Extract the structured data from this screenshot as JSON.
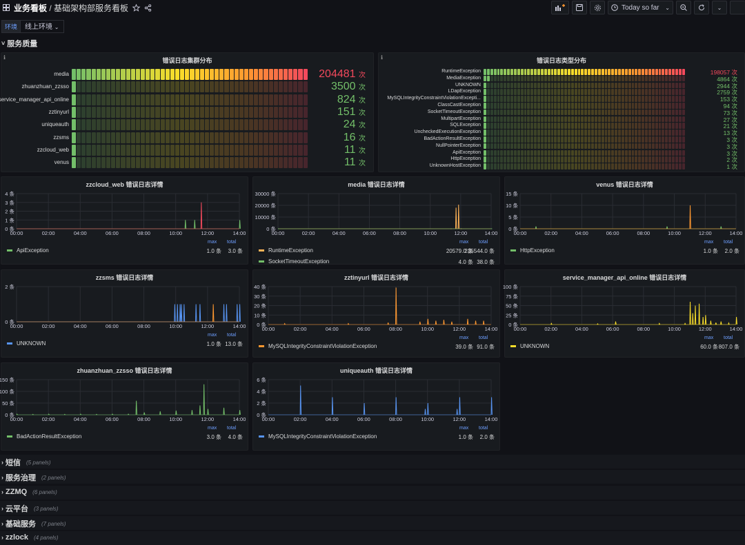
{
  "header": {
    "section": "业务看板",
    "separator": "/",
    "title": "基础架构部服务看板",
    "time_range": "Today so far"
  },
  "variables": [
    {
      "label": "环境",
      "value": "线上环境"
    }
  ],
  "rows": {
    "quality": "服务质量",
    "collapsed": [
      {
        "title": "短信",
        "count": "(5 panels)"
      },
      {
        "title": "服务治理",
        "count": "(2 panels)"
      },
      {
        "title": "ZZMQ",
        "count": "(6 panels)"
      },
      {
        "title": "云平台",
        "count": "(3 panels)"
      },
      {
        "title": "基础服务",
        "count": "(7 panels)"
      },
      {
        "title": "zzlock",
        "count": "(4 panels)"
      }
    ]
  },
  "bargauge_cluster": {
    "title": "错误日志集群分布",
    "unit": "次",
    "items": [
      {
        "label": "media",
        "value": "204481",
        "fraction": 1.0,
        "color": "#f2495c"
      },
      {
        "label": "zhuanzhuan_zzsso",
        "value": "3500",
        "fraction": 0.017,
        "color": "#73bf69"
      },
      {
        "label": "service_manager_api_online",
        "value": "824",
        "fraction": 0.004,
        "color": "#73bf69"
      },
      {
        "label": "zztinyurl",
        "value": "151",
        "fraction": 0.001,
        "color": "#73bf69"
      },
      {
        "label": "uniqueauth",
        "value": "24",
        "fraction": 0.0001,
        "color": "#73bf69"
      },
      {
        "label": "zzsms",
        "value": "16",
        "fraction": 0.0001,
        "color": "#73bf69"
      },
      {
        "label": "zzcloud_web",
        "value": "11",
        "fraction": 0.0001,
        "color": "#73bf69"
      },
      {
        "label": "venus",
        "value": "11",
        "fraction": 0.0001,
        "color": "#73bf69"
      }
    ]
  },
  "bargauge_type": {
    "title": "错误日志类型分布",
    "unit": "次",
    "items": [
      {
        "label": "RuntimeException",
        "value": "198057",
        "fraction": 1.0,
        "color": "#f2495c"
      },
      {
        "label": "MediaException",
        "value": "4864",
        "fraction": 0.025,
        "color": "#73bf69"
      },
      {
        "label": "UNKNOWN",
        "value": "2944",
        "fraction": 0.015,
        "color": "#73bf69"
      },
      {
        "label": "LDapException",
        "value": "2759",
        "fraction": 0.014,
        "color": "#73bf69"
      },
      {
        "label": "MySQLIntegrityConstraintViolationExcepti...",
        "value": "153",
        "fraction": 0.001,
        "color": "#73bf69"
      },
      {
        "label": "ClassCastException",
        "value": "94",
        "fraction": 0.0005,
        "color": "#73bf69"
      },
      {
        "label": "SocketTimeoutException",
        "value": "73",
        "fraction": 0.0004,
        "color": "#73bf69"
      },
      {
        "label": "MultipartException",
        "value": "27",
        "fraction": 0.0001,
        "color": "#73bf69"
      },
      {
        "label": "SQLException",
        "value": "21",
        "fraction": 0.0001,
        "color": "#73bf69"
      },
      {
        "label": "UncheckedExecutionException",
        "value": "13",
        "fraction": 0.0001,
        "color": "#73bf69"
      },
      {
        "label": "BadActionResultException",
        "value": "3",
        "fraction": 0.0,
        "color": "#73bf69"
      },
      {
        "label": "NullPointerException",
        "value": "3",
        "fraction": 0.0,
        "color": "#73bf69"
      },
      {
        "label": "ApiException",
        "value": "3",
        "fraction": 0.0,
        "color": "#73bf69"
      },
      {
        "label": "HttpException",
        "value": "2",
        "fraction": 0.0,
        "color": "#73bf69"
      },
      {
        "label": "UnknownHostException",
        "value": "1",
        "fraction": 0.0,
        "color": "#73bf69"
      }
    ]
  },
  "legend_headers": {
    "max": "max",
    "total": "total"
  },
  "chart_data": [
    {
      "type": "line",
      "title": "zzcloud_web 错误日志详情",
      "x_ticks": [
        "00:00",
        "02:00",
        "04:00",
        "06:00",
        "08:00",
        "10:00",
        "12:00",
        "14:00"
      ],
      "y_ticks": [
        "0 条",
        "1 条",
        "2 条",
        "3 条",
        "4 条"
      ],
      "ylim": [
        0,
        4
      ],
      "series": [
        {
          "name": "ApiException",
          "color": "#73bf69",
          "max": "1.0 条",
          "total": "3.0 条",
          "points": [
            [
              "10:35",
              1
            ],
            [
              "11:10",
              1
            ],
            [
              "14:00",
              1
            ]
          ]
        },
        {
          "name": "",
          "color": "#f2495c",
          "max": "",
          "total": "",
          "points": [
            [
              "11:35",
              3
            ]
          ]
        }
      ]
    },
    {
      "type": "line",
      "title": "media 错误日志详情",
      "x_ticks": [
        "00:00",
        "02:00",
        "04:00",
        "06:00",
        "08:00",
        "10:00",
        "12:00",
        "14:00"
      ],
      "y_ticks": [
        "0 条",
        "10000 条",
        "20000 条",
        "30000 条"
      ],
      "ylim": [
        0,
        30000
      ],
      "series": [
        {
          "name": "RuntimeException",
          "color": "#ffb357",
          "max": "20579.0 条",
          "total": "235544.0 条",
          "points": [
            [
              "11:20",
              0
            ],
            [
              "11:40",
              18000
            ],
            [
              "11:50",
              20579
            ],
            [
              "12:00",
              0
            ]
          ]
        },
        {
          "name": "SocketTimeoutException",
          "color": "#73bf69",
          "max": "4.0 条",
          "total": "38.0 条",
          "points": [
            [
              "00:00",
              0
            ],
            [
              "14:00",
              0
            ]
          ]
        }
      ]
    },
    {
      "type": "line",
      "title": "venus 错误日志详情",
      "x_ticks": [
        "00:00",
        "02:00",
        "04:00",
        "06:00",
        "08:00",
        "10:00",
        "12:00",
        "14:00"
      ],
      "y_ticks": [
        "0 条",
        "5 条",
        "10 条",
        "15 条"
      ],
      "ylim": [
        0,
        15
      ],
      "series": [
        {
          "name": "HttpException",
          "color": "#73bf69",
          "max": "1.0 条",
          "total": "2.0 条",
          "points": [
            [
              "01:00",
              1
            ],
            [
              "09:30",
              1
            ],
            [
              "13:00",
              1
            ]
          ]
        },
        {
          "name": "",
          "color": "#ff9830",
          "max": "",
          "total": "",
          "points": [
            [
              "11:00",
              10
            ]
          ]
        }
      ]
    },
    {
      "type": "line",
      "title": "zzsms 错误日志详情",
      "x_ticks": [
        "00:00",
        "02:00",
        "04:00",
        "06:00",
        "08:00",
        "10:00",
        "12:00",
        "14:00"
      ],
      "y_ticks": [
        "0 条",
        "2 条"
      ],
      "ylim": [
        0,
        2
      ],
      "series": [
        {
          "name": "UNKNOWN",
          "color": "#5794f2",
          "max": "1.0 条",
          "total": "13.0 条",
          "points": [
            [
              "09:55",
              1
            ],
            [
              "10:05",
              1
            ],
            [
              "10:15",
              1
            ],
            [
              "10:20",
              1
            ],
            [
              "10:30",
              1
            ],
            [
              "11:15",
              1
            ],
            [
              "11:30",
              1
            ],
            [
              "13:00",
              1
            ],
            [
              "13:10",
              1
            ],
            [
              "13:50",
              1
            ],
            [
              "14:00",
              1
            ]
          ]
        },
        {
          "name": "",
          "color": "#ff9830",
          "max": "",
          "total": "",
          "points": [
            [
              "12:20",
              1
            ]
          ]
        }
      ]
    },
    {
      "type": "line",
      "title": "zztinyurl 错误日志详情",
      "x_ticks": [
        "00:00",
        "02:00",
        "04:00",
        "06:00",
        "08:00",
        "10:00",
        "12:00",
        "14:00"
      ],
      "y_ticks": [
        "0 条",
        "10 条",
        "20 条",
        "30 条",
        "40 条"
      ],
      "ylim": [
        0,
        40
      ],
      "series": [
        {
          "name": "MySQLIntegrityConstraintViolationException",
          "color": "#ff9830",
          "max": "39.0 条",
          "total": "91.0 条",
          "points": [
            [
              "01:00",
              1
            ],
            [
              "05:00",
              1
            ],
            [
              "07:30",
              2
            ],
            [
              "08:00",
              39
            ],
            [
              "09:30",
              3
            ],
            [
              "10:00",
              6
            ],
            [
              "10:30",
              4
            ],
            [
              "11:00",
              5
            ],
            [
              "11:30",
              3
            ],
            [
              "12:30",
              6
            ],
            [
              "13:00",
              4
            ],
            [
              "13:30",
              4
            ]
          ]
        }
      ]
    },
    {
      "type": "line",
      "title": "service_manager_api_online 错误日志详情",
      "x_ticks": [
        "00:00",
        "02:00",
        "04:00",
        "06:00",
        "08:00",
        "10:00",
        "12:00",
        "14:00"
      ],
      "y_ticks": [
        "0 条",
        "25 条",
        "50 条",
        "75 条",
        "100 条"
      ],
      "ylim": [
        0,
        100
      ],
      "series": [
        {
          "name": "UNKNOWN",
          "color": "#fade2a",
          "max": "60.0 条",
          "total": "807.0 条",
          "points": [
            [
              "02:00",
              3
            ],
            [
              "05:00",
              2
            ],
            [
              "06:10",
              8
            ],
            [
              "09:00",
              3
            ],
            [
              "10:40",
              3
            ],
            [
              "11:00",
              60
            ],
            [
              "11:10",
              30
            ],
            [
              "11:20",
              50
            ],
            [
              "11:35",
              55
            ],
            [
              "11:50",
              20
            ],
            [
              "12:00",
              25
            ],
            [
              "12:20",
              10
            ],
            [
              "12:40",
              5
            ],
            [
              "13:00",
              8
            ],
            [
              "13:30",
              4
            ],
            [
              "14:00",
              20
            ]
          ]
        }
      ]
    },
    {
      "type": "line",
      "title": "zhuanzhuan_zzsso 错误日志详情",
      "x_ticks": [
        "00:00",
        "02:00",
        "04:00",
        "06:00",
        "08:00",
        "10:00",
        "12:00",
        "14:00"
      ],
      "y_ticks": [
        "0 条",
        "50 条",
        "100 条",
        "150 条"
      ],
      "ylim": [
        0,
        150
      ],
      "series": [
        {
          "name": "BadActionResultException",
          "color": "#73bf69",
          "max": "3.0 条",
          "total": "4.0 条",
          "points": [
            [
              "00:00",
              3
            ],
            [
              "01:00",
              2
            ],
            [
              "02:00",
              3
            ],
            [
              "03:00",
              2
            ],
            [
              "04:00",
              3
            ],
            [
              "05:00",
              2
            ],
            [
              "06:00",
              3
            ],
            [
              "07:00",
              3
            ],
            [
              "07:30",
              60
            ],
            [
              "08:00",
              10
            ],
            [
              "09:00",
              15
            ],
            [
              "10:00",
              18
            ],
            [
              "11:00",
              20
            ],
            [
              "11:30",
              40
            ],
            [
              "11:45",
              130
            ],
            [
              "12:00",
              25
            ],
            [
              "13:00",
              30
            ],
            [
              "14:00",
              20
            ]
          ]
        }
      ]
    },
    {
      "type": "line",
      "title": "uniqueauth 错误日志详情",
      "x_ticks": [
        "00:00",
        "02:00",
        "04:00",
        "06:00",
        "08:00",
        "10:00",
        "12:00",
        "14:00"
      ],
      "y_ticks": [
        "0 条",
        "2 条",
        "4 条",
        "6 条"
      ],
      "ylim": [
        0,
        6
      ],
      "series": [
        {
          "name": "MySQLIntegrityConstraintViolationException",
          "color": "#5794f2",
          "max": "1.0 条",
          "total": "2.0 条",
          "points": [
            [
              "02:00",
              5
            ],
            [
              "04:00",
              3
            ],
            [
              "06:00",
              2
            ],
            [
              "08:00",
              3
            ],
            [
              "09:50",
              1
            ],
            [
              "10:00",
              2
            ],
            [
              "11:50",
              1
            ],
            [
              "12:00",
              3
            ],
            [
              "14:00",
              3
            ]
          ]
        }
      ]
    }
  ]
}
